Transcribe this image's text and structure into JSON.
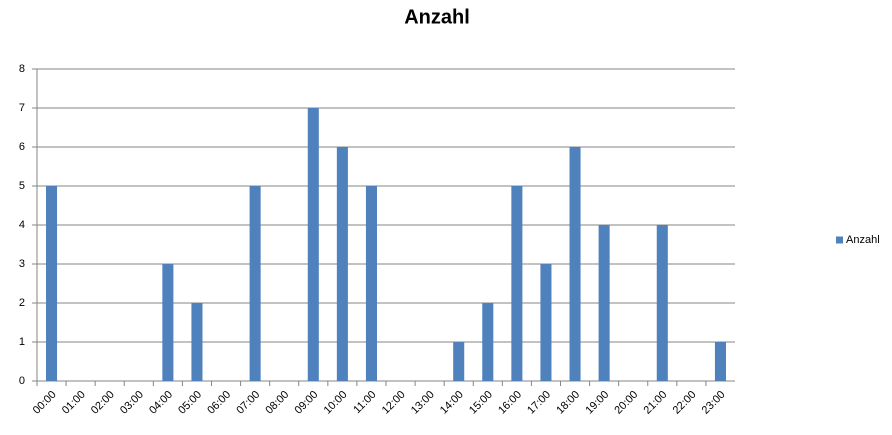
{
  "chart_data": {
    "type": "bar",
    "title": "Anzahl",
    "categories": [
      "00:00",
      "01:00",
      "02:00",
      "03:00",
      "04:00",
      "05:00",
      "06:00",
      "07:00",
      "08:00",
      "09:00",
      "10:00",
      "11:00",
      "12:00",
      "13:00",
      "14:00",
      "15:00",
      "16:00",
      "17:00",
      "18:00",
      "19:00",
      "20:00",
      "21:00",
      "22:00",
      "23:00"
    ],
    "series": [
      {
        "name": "Anzahl",
        "color": "#4f81bd",
        "values": [
          5,
          0,
          0,
          0,
          3,
          2,
          0,
          5,
          0,
          7,
          6,
          5,
          0,
          0,
          1,
          2,
          5,
          3,
          6,
          4,
          0,
          4,
          0,
          1
        ]
      }
    ],
    "ylim": [
      0,
      8
    ],
    "yticks": [
      0,
      1,
      2,
      3,
      4,
      5,
      6,
      7,
      8
    ],
    "grid": true,
    "legend": "right"
  }
}
